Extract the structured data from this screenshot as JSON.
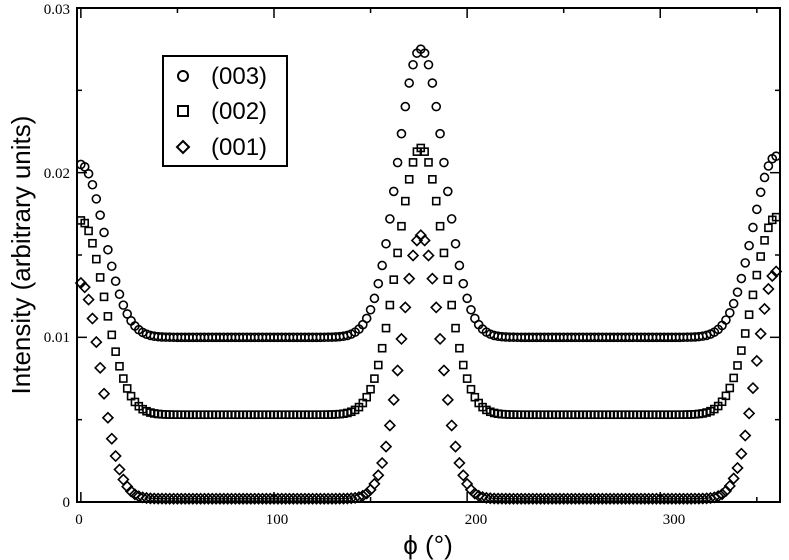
{
  "chart_data": {
    "type": "scatter",
    "xlabel": "ϕ (°)",
    "ylabel": "Intensity (arbitrary units)",
    "xlim": [
      -2,
      362
    ],
    "ylim": [
      0,
      0.03
    ],
    "x_ticks": [
      0,
      100,
      200,
      300
    ],
    "y_ticks": [
      0,
      0.01,
      0.02,
      0.03
    ],
    "x_tick_labels": [
      "0",
      "100",
      "200",
      "300"
    ],
    "y_tick_labels": [
      "0",
      "0.01",
      "0.02",
      "0.03"
    ],
    "grid": false,
    "legend_position": "top-left",
    "x_step": 2,
    "series": [
      {
        "name": "(003)",
        "marker": "circle",
        "baseline": 0.01,
        "peak_center": 176,
        "peak_height": 0.0175,
        "peak_width": 12,
        "edge_left": 0.0205,
        "edge_right": 0.021
      },
      {
        "name": "(002)",
        "marker": "square",
        "baseline": 0.0053,
        "peak_center": 176,
        "peak_height": 0.0162,
        "peak_width": 12,
        "edge_left": 0.0171,
        "edge_right": 0.0173
      },
      {
        "name": "(001)",
        "marker": "diamond",
        "baseline": 0.0002,
        "peak_center": 176,
        "peak_height": 0.016,
        "peak_width": 10,
        "edge_left": 0.0133,
        "edge_right": 0.014
      }
    ]
  }
}
